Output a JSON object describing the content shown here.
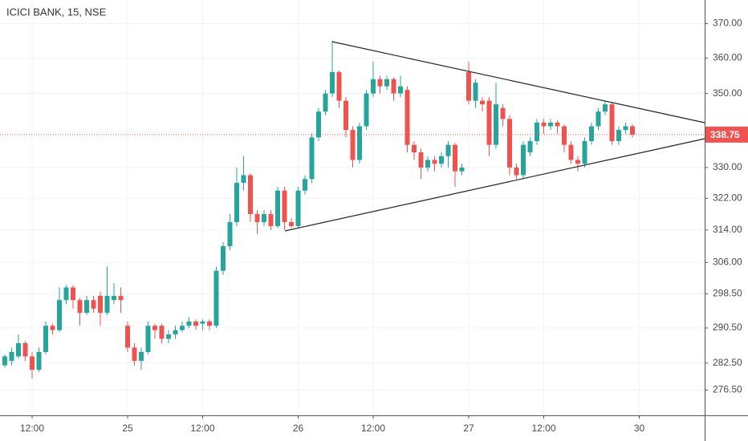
{
  "chart_data": {
    "type": "candlestick",
    "title": "ICICI BANK, 15, NSE",
    "categories": [
      null,
      null,
      null,
      null,
      "12:00",
      null,
      null,
      null,
      null,
      null,
      null,
      null,
      null,
      null,
      null,
      null,
      null,
      null,
      "25",
      null,
      null,
      null,
      null,
      null,
      null,
      null,
      null,
      null,
      null,
      "12:00",
      null,
      null,
      null,
      null,
      null,
      null,
      null,
      null,
      null,
      null,
      null,
      null,
      null,
      "26",
      null,
      null,
      null,
      null,
      null,
      null,
      null,
      null,
      null,
      null,
      "12:00",
      null,
      null,
      null,
      null,
      null,
      null,
      null,
      null,
      null,
      null,
      null,
      null,
      null,
      "27",
      null,
      null,
      null,
      null,
      null,
      null,
      null,
      null,
      null,
      null,
      "12:00",
      null,
      null,
      null,
      null,
      null,
      null,
      null,
      null,
      null,
      null,
      null,
      null,
      null,
      "30"
    ],
    "open": [
      282,
      283,
      284,
      287,
      284,
      281,
      285,
      291,
      290,
      297,
      300,
      297,
      294,
      297,
      298,
      294,
      297,
      298,
      291,
      286,
      283,
      285,
      291,
      291,
      288,
      289,
      290,
      291,
      292,
      291.5,
      292,
      291,
      304,
      310,
      316,
      326,
      328,
      318,
      316,
      318,
      315,
      324,
      316,
      315,
      324,
      327,
      338,
      345,
      350,
      356,
      348,
      340,
      332,
      341,
      350,
      354,
      352,
      354,
      350,
      351,
      336,
      334,
      330,
      332,
      331,
      333,
      336,
      329,
      356,
      348,
      348,
      348,
      336,
      346,
      343,
      330,
      328,
      334,
      337,
      342,
      341,
      342,
      341,
      336,
      332,
      331,
      337,
      341,
      345,
      347,
      337,
      340,
      341,
      null
    ],
    "high": [
      284.5,
      286,
      289,
      287.5,
      285,
      286,
      292,
      291.5,
      300,
      300.5,
      300.5,
      297.5,
      298,
      298,
      299,
      305,
      301,
      300,
      292,
      287,
      286,
      292,
      291.5,
      291.5,
      290,
      291,
      292,
      293,
      292.5,
      292.5,
      292.5,
      305,
      311,
      318,
      330,
      333,
      328.5,
      319,
      319,
      319,
      325,
      325,
      317,
      325,
      328,
      339,
      346,
      351,
      365,
      356.5,
      349,
      341,
      342,
      351,
      359,
      355,
      355,
      354.5,
      355,
      352,
      337,
      335,
      333,
      333,
      334,
      337,
      336.5,
      331,
      359,
      354,
      349,
      349,
      353,
      347,
      344,
      331,
      337,
      338,
      343,
      343,
      343,
      342.5,
      341.5,
      337,
      333,
      338,
      342,
      346,
      348,
      347.5,
      341,
      342,
      341.5,
      null
    ],
    "low": [
      281.5,
      282,
      283.5,
      283,
      279,
      280.5,
      284.5,
      289,
      289.5,
      296,
      295,
      291,
      293.5,
      294,
      291,
      293.5,
      296,
      294,
      285,
      282,
      281,
      284.5,
      288,
      287,
      287,
      288,
      289.5,
      290.5,
      290,
      290,
      290,
      290.5,
      303,
      309,
      315,
      324,
      316,
      313,
      315,
      314,
      314.5,
      314,
      314.5,
      314.5,
      323,
      326,
      337,
      344,
      349,
      346,
      338,
      330,
      331,
      340,
      349,
      350,
      351,
      348,
      349,
      334,
      332,
      327,
      329,
      329,
      330,
      330,
      325,
      328,
      347,
      346,
      345,
      333,
      335,
      341,
      328,
      327,
      327,
      333,
      336,
      339,
      340,
      339,
      334,
      331,
      329,
      330,
      336,
      340,
      344,
      336,
      336,
      339,
      338,
      null
    ],
    "close": [
      284,
      285,
      287,
      284,
      281,
      285,
      291,
      290,
      297,
      300,
      297,
      294,
      297,
      295,
      294,
      298,
      298,
      297,
      286,
      283,
      285,
      291,
      290,
      288,
      289,
      290,
      291,
      292,
      291,
      292,
      291,
      304,
      310,
      316,
      326,
      328,
      318,
      316,
      318,
      315,
      324,
      316,
      315,
      324,
      327,
      338,
      345,
      350,
      356,
      348,
      340,
      332,
      341,
      350,
      354,
      352,
      354,
      350,
      352,
      336,
      334,
      330,
      332,
      331,
      333,
      336,
      329,
      330,
      348,
      353,
      347,
      336,
      347,
      343,
      330,
      328,
      336,
      337,
      342,
      341,
      342,
      341,
      336,
      332,
      331,
      337,
      341,
      345,
      347,
      337,
      340,
      341,
      338.75,
      null
    ],
    "up_color": "#26a69a",
    "down_color": "#ef5350",
    "log_scale": true,
    "ylim": [
      271,
      377
    ],
    "yticks": [
      {
        "value": 370,
        "label": "370.00"
      },
      {
        "value": 360,
        "label": "360.00"
      },
      {
        "value": 350,
        "label": "350.00"
      },
      {
        "value": 330,
        "label": "330.00"
      },
      {
        "value": 322,
        "label": "322.00"
      },
      {
        "value": 314,
        "label": "314.00"
      },
      {
        "value": 306,
        "label": "306.00"
      },
      {
        "value": 298.5,
        "label": "298.50"
      },
      {
        "value": 290.5,
        "label": "290.50"
      },
      {
        "value": 282.5,
        "label": "282.50"
      },
      {
        "value": 276.5,
        "label": "276.50"
      }
    ],
    "grid": true,
    "last_price": 338.75
  }
}
